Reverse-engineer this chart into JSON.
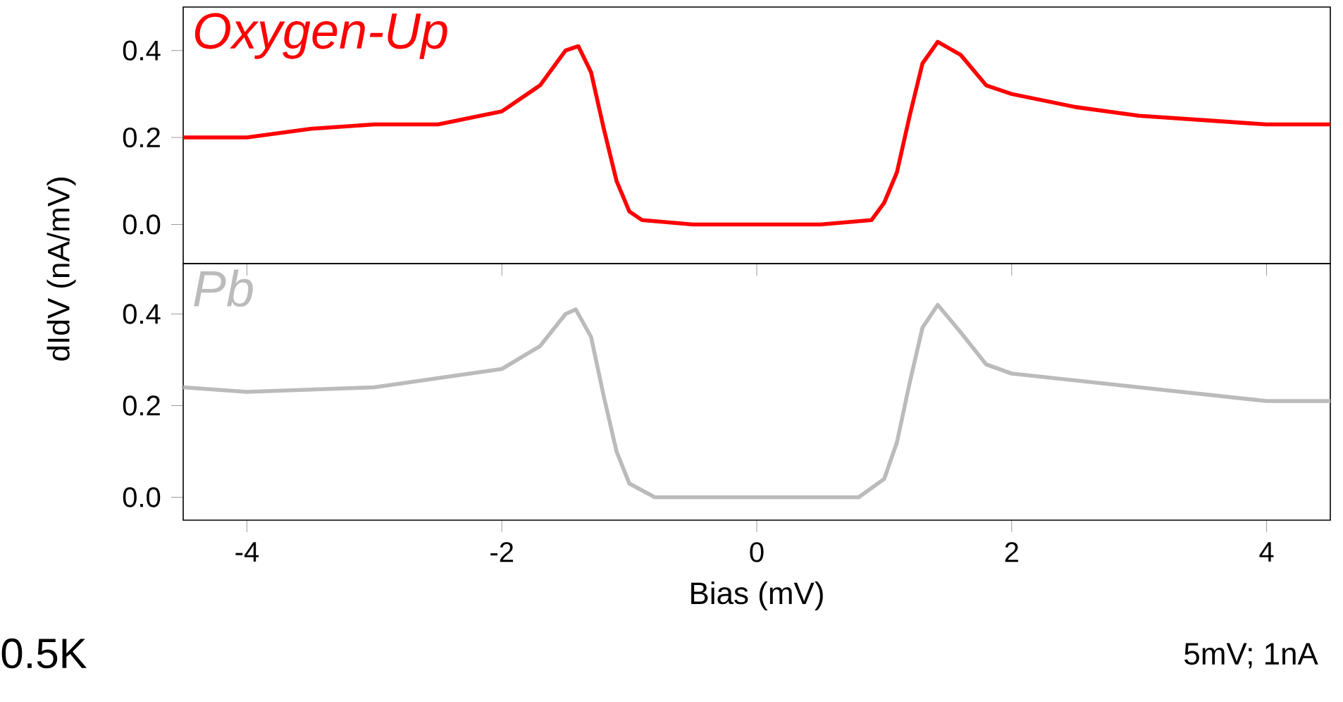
{
  "chart_data": [
    {
      "type": "line",
      "ylabel": "dIdV (nA/mV)",
      "xlim": [
        -4.5,
        4.5
      ],
      "ylim": [
        -0.09,
        0.5
      ],
      "xticks": [
        -4,
        -2,
        0,
        2,
        4
      ],
      "yticks": [
        {
          "value": 0,
          "label": "0.0"
        },
        {
          "value": 0.2,
          "label": "0.2"
        },
        {
          "value": 0.4,
          "label": "0.4"
        }
      ],
      "tick_labels": "y",
      "series": [
        {
          "name": "Oxygen-Up",
          "color": "#ff0000",
          "x": [
            -4.5,
            -4,
            -3.5,
            -3,
            -2.5,
            -2,
            -1.7,
            -1.5,
            -1.4,
            -1.3,
            -1.2,
            -1.1,
            -1.0,
            -0.9,
            -0.5,
            0,
            0.5,
            0.9,
            1.0,
            1.1,
            1.2,
            1.3,
            1.42,
            1.6,
            1.8,
            2,
            2.5,
            3,
            3.5,
            4,
            4.5
          ],
          "values": [
            0.2,
            0.2,
            0.22,
            0.23,
            0.23,
            0.26,
            0.32,
            0.4,
            0.41,
            0.35,
            0.22,
            0.1,
            0.03,
            0.01,
            0.0,
            0.0,
            0.0,
            0.01,
            0.05,
            0.12,
            0.25,
            0.37,
            0.42,
            0.39,
            0.32,
            0.3,
            0.27,
            0.25,
            0.24,
            0.23,
            0.23
          ]
        }
      ]
    },
    {
      "type": "line",
      "xlabel": "Bias (mV)",
      "xlim": [
        -4.5,
        4.5
      ],
      "ylim": [
        -0.05,
        0.51
      ],
      "xticks": [
        -4,
        -2,
        0,
        2,
        4
      ],
      "yticks": [
        {
          "value": 0,
          "label": "0.0"
        },
        {
          "value": 0.2,
          "label": "0.2"
        },
        {
          "value": 0.4,
          "label": "0.4"
        }
      ],
      "annotations": [
        "0.5K",
        "5mV; 1nA"
      ],
      "series": [
        {
          "name": "Pb",
          "color": "#bbbbbb",
          "x": [
            -4.5,
            -4,
            -3,
            -2,
            -1.7,
            -1.5,
            -1.42,
            -1.3,
            -1.2,
            -1.1,
            -1.0,
            -0.8,
            0,
            0.8,
            1.0,
            1.1,
            1.2,
            1.3,
            1.42,
            1.6,
            1.8,
            2,
            3,
            4,
            4.5
          ],
          "values": [
            0.24,
            0.23,
            0.24,
            0.28,
            0.33,
            0.4,
            0.41,
            0.35,
            0.22,
            0.1,
            0.03,
            0.0,
            0.0,
            0.0,
            0.04,
            0.12,
            0.25,
            0.37,
            0.42,
            0.36,
            0.29,
            0.27,
            0.24,
            0.21,
            0.21
          ]
        }
      ]
    }
  ]
}
